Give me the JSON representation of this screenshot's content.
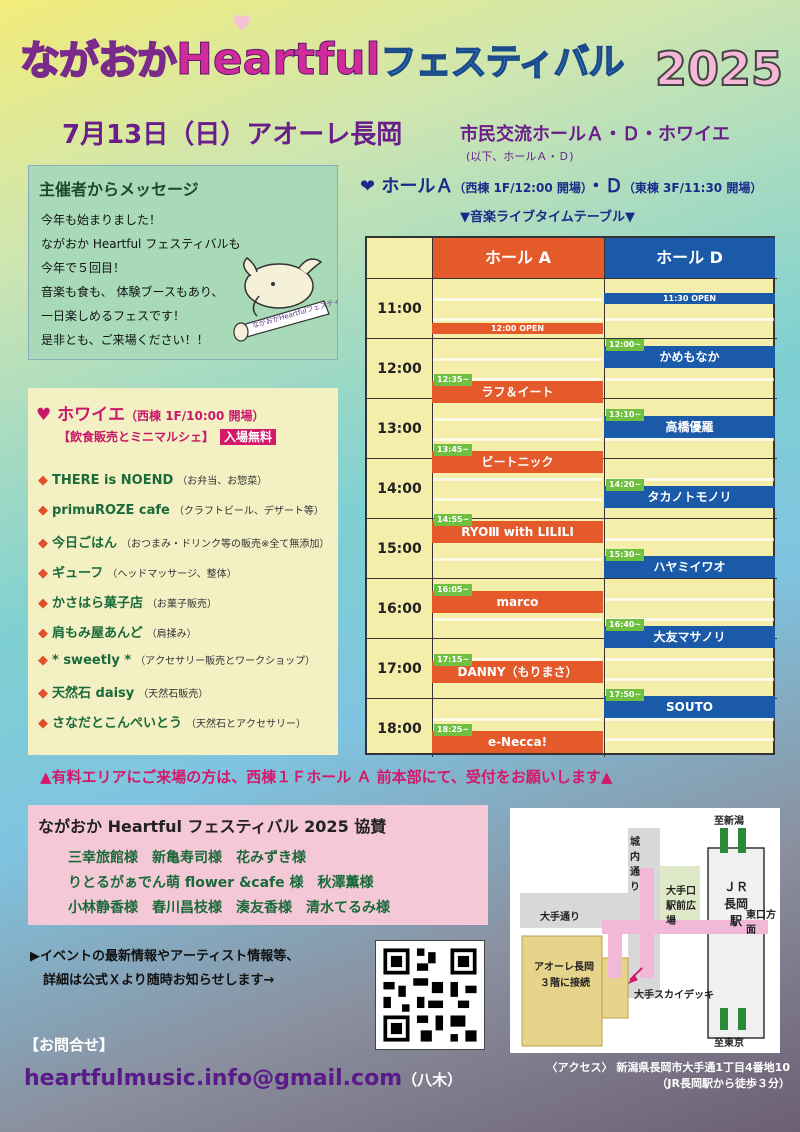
{
  "header": {
    "title_part1": "ながおか",
    "title_part2": "Heartful",
    "title_part3": "フェスティバル",
    "year": "2025",
    "date_venue": "7月13日（日）アオーレ長岡",
    "venue_detail": "市民交流ホールＡ・Ｄ・ホワイエ",
    "venue_note": "(以下、ホールＡ・Ｄ)"
  },
  "message": {
    "title": "主催者からメッセージ",
    "text": "今年も始まりました！\nながおか Heartful フェスティバルも\n今年で５回目！\n音楽も食も、 体験ブースもあり、\n一日楽しめるフェスです！\n是非とも、ご来場ください！！",
    "banner_text": "ながおかHeartfulフェスティバル"
  },
  "foyer": {
    "title": "ホワイエ",
    "title_note": "（西棟 1F/10:00 開場）",
    "sub": "【飲食販売とミニマルシェ】",
    "badge": "入場無料",
    "vendors": [
      {
        "name": "THERE is NOEND",
        "note": "（お弁当、お惣菜）"
      },
      {
        "name": "primuROZE cafe",
        "note": "（クラフトビール、デザート等）"
      },
      {
        "name": "今日ごはん",
        "note": "（おつまみ・ドリンク等の販売※全て無添加）"
      },
      {
        "name": "ギューフ",
        "note": "（ヘッドマッサージ、整体）"
      },
      {
        "name": "かさはら菓子店",
        "note": "（お菓子販売）"
      },
      {
        "name": "肩もみ屋あんど",
        "note": "（肩揉み）"
      },
      {
        "name": "* sweetly *",
        "note": "（アクセサリー販売とワークショップ）"
      },
      {
        "name": "天然石 daisy",
        "note": "（天然石販売）"
      },
      {
        "name": "さなだとこんぺいとう",
        "note": "（天然石とアクセサリー）"
      }
    ]
  },
  "halls": {
    "heading": "ホール",
    "heading_a": "Ａ",
    "heading_a_note": "（西棟 1F/12:00 開場）",
    "heading_sep": "・",
    "heading_d": "Ｄ",
    "heading_d_note": "（東棟 3F/11:30 開場）",
    "caption": "▼音楽ライブタイムテーブル▼"
  },
  "timetable": {
    "col_a": "ホール A",
    "col_d": "ホール D",
    "times": [
      "11:00",
      "12:00",
      "13:00",
      "14:00",
      "15:00",
      "16:00",
      "17:00",
      "18:00"
    ],
    "open_a": "12:00 OPEN",
    "open_d": "11:30 OPEN",
    "hall_a": [
      {
        "start": "12:35~",
        "name": "ラフ＆イート",
        "offset": 1.58
      },
      {
        "start": "13:45~",
        "name": "ビートニック",
        "offset": 2.75
      },
      {
        "start": "14:55~",
        "name": "RYOⅢ with LILILI",
        "offset": 3.92
      },
      {
        "start": "16:05~",
        "name": "marco",
        "offset": 5.08
      },
      {
        "start": "17:15~",
        "name": "DANNY（もりまさ）",
        "offset": 6.25
      },
      {
        "start": "18:25~",
        "name": "e-Necca!",
        "offset": 7.42
      }
    ],
    "hall_d": [
      {
        "start": "12:00~",
        "name": "かめもなか",
        "offset": 1.0
      },
      {
        "start": "13:10~",
        "name": "高橋優羅",
        "offset": 2.17
      },
      {
        "start": "14:20~",
        "name": "タカノトモノリ",
        "offset": 3.33
      },
      {
        "start": "15:30~",
        "name": "ハヤミイワオ",
        "offset": 4.5
      },
      {
        "start": "16:40~",
        "name": "大友マサノリ",
        "offset": 5.67
      },
      {
        "start": "17:50~",
        "name": "SOUTO",
        "offset": 6.83
      }
    ]
  },
  "notice": "▲有料エリアにご来場の方は、西棟１Ｆホール Ａ 前本部にて、受付をお願いします▲",
  "sponsors": {
    "title": "ながおか Heartful フェスティバル 2025 協賛",
    "lines": [
      "三幸旅館様　新亀寿司様　花みずき様",
      "りとるがぁでん萌 flower &cafe 様　秋澤薫様",
      "小林静香様　春川昌枝様　湊友香様　清水てるみ様"
    ]
  },
  "info": "▶イベントの最新情報やアーティスト情報等、\n　詳細は公式Ｘより随時お知らせします→",
  "contact": {
    "label": "【お問合せ】",
    "email": "heartfulmusic.info@gmail.com",
    "person": "（八木）"
  },
  "map": {
    "to_niigata": "至新潟",
    "to_tokyo": "至東京",
    "station": "ＪＲ長岡駅",
    "street_jonai": "城内通り",
    "street_ote": "大手通り",
    "plaza": "大手口駅前広場",
    "east_exit": "東口方面",
    "aore": "アオーレ長岡",
    "aore_note": "３階に接続",
    "deck": "大手スカイデッキ"
  },
  "access": {
    "line1": "〈アクセス〉 新潟県長岡市大手通1丁目4番地10",
    "line2": "（JR長岡駅から徒歩３分）"
  },
  "colors": {
    "hall_a": "#e55a2a",
    "hall_d": "#1a5aa8",
    "accent_pink": "#d4186a",
    "title_purple": "#6a1e8a"
  }
}
